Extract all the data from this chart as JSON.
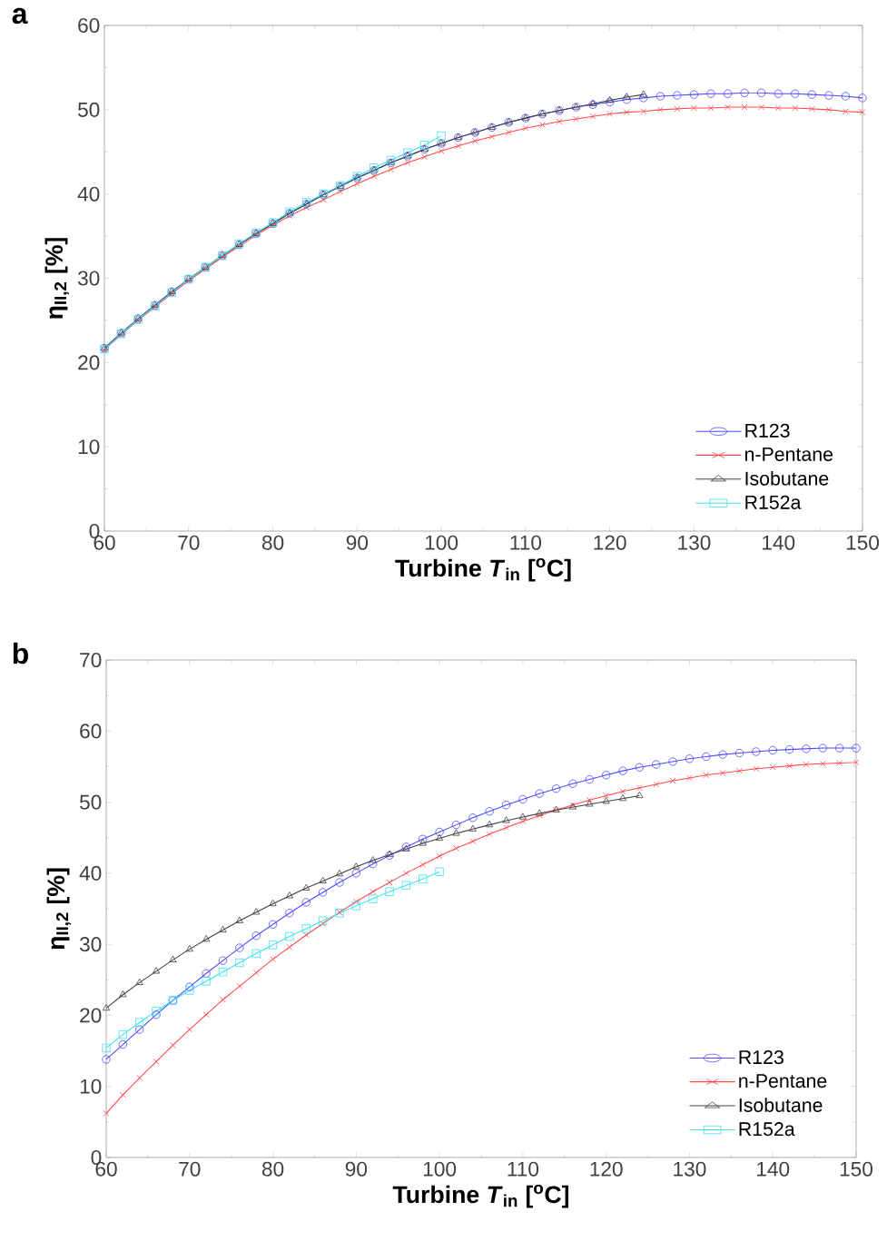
{
  "chart_data": [
    {
      "type": "line",
      "annotations": [
        "a"
      ],
      "xlabel": "Turbine *T*$_{in}$ [$^{o}$C]",
      "ylabel": "η$_{II,2}$ [%]",
      "xlim": [
        60,
        150
      ],
      "ylim": [
        0,
        60
      ],
      "xticks": [
        60,
        70,
        80,
        90,
        100,
        110,
        120,
        130,
        140,
        150
      ],
      "yticks": [
        0,
        10,
        20,
        30,
        40,
        50,
        60
      ],
      "grid": false,
      "legend": "bottom right",
      "line_style": "solid",
      "series": [
        {
          "name": "R123",
          "color": "#4a4aff",
          "marker": "circle",
          "x": [
            60,
            62,
            64,
            66,
            68,
            70,
            72,
            74,
            76,
            78,
            80,
            82,
            84,
            86,
            88,
            90,
            92,
            94,
            96,
            98,
            100,
            102,
            104,
            106,
            108,
            110,
            112,
            114,
            116,
            118,
            120,
            122,
            124,
            126,
            128,
            130,
            132,
            134,
            136,
            138,
            140,
            142,
            144,
            146,
            148,
            150
          ],
          "values": [
            21.7,
            23.5,
            25.2,
            26.8,
            28.4,
            29.9,
            31.3,
            32.7,
            34.0,
            35.3,
            36.5,
            37.7,
            38.8,
            39.9,
            40.9,
            41.9,
            42.8,
            43.7,
            44.5,
            45.3,
            46.0,
            46.7,
            47.3,
            47.9,
            48.5,
            49.0,
            49.5,
            49.9,
            50.3,
            50.6,
            50.9,
            51.2,
            51.4,
            51.6,
            51.7,
            51.8,
            51.9,
            51.9,
            52.0,
            52.0,
            51.9,
            51.9,
            51.8,
            51.7,
            51.6,
            51.4
          ]
        },
        {
          "name": "n-Pentane",
          "color": "#ff4a4a",
          "marker": "cross",
          "x": [
            60,
            62,
            64,
            66,
            68,
            70,
            72,
            74,
            76,
            78,
            80,
            82,
            84,
            86,
            88,
            90,
            92,
            94,
            96,
            98,
            100,
            102,
            104,
            106,
            108,
            110,
            112,
            114,
            116,
            118,
            120,
            122,
            124,
            126,
            128,
            130,
            132,
            134,
            136,
            138,
            140,
            142,
            144,
            146,
            148,
            150
          ],
          "values": [
            21.5,
            23.3,
            25.0,
            26.6,
            28.2,
            29.7,
            31.1,
            32.5,
            33.8,
            35.1,
            36.3,
            37.4,
            38.4,
            39.3,
            40.3,
            41.2,
            42.1,
            42.9,
            43.7,
            44.4,
            45.1,
            45.7,
            46.3,
            46.8,
            47.3,
            47.8,
            48.2,
            48.6,
            48.9,
            49.2,
            49.5,
            49.7,
            49.8,
            50.0,
            50.1,
            50.2,
            50.2,
            50.3,
            50.3,
            50.3,
            50.2,
            50.2,
            50.1,
            50.0,
            49.8,
            49.7
          ]
        },
        {
          "name": "Isobutane",
          "color": "#404040",
          "marker": "triangle",
          "x": [
            60,
            62,
            64,
            66,
            68,
            70,
            72,
            74,
            76,
            78,
            80,
            82,
            84,
            86,
            88,
            90,
            92,
            94,
            96,
            98,
            100,
            102,
            104,
            106,
            108,
            110,
            112,
            114,
            116,
            118,
            120,
            122,
            124
          ],
          "values": [
            21.7,
            23.5,
            25.2,
            26.8,
            28.4,
            29.9,
            31.3,
            32.7,
            34.0,
            35.3,
            36.5,
            37.7,
            38.8,
            39.9,
            40.9,
            41.9,
            42.8,
            43.7,
            44.5,
            45.3,
            46.0,
            46.7,
            47.3,
            47.9,
            48.5,
            49.0,
            49.5,
            49.9,
            50.3,
            50.7,
            51.1,
            51.5,
            51.8
          ]
        },
        {
          "name": "R152a",
          "color": "#3ee0f0",
          "marker": "square",
          "x": [
            60,
            62,
            64,
            66,
            68,
            70,
            72,
            74,
            76,
            78,
            80,
            82,
            84,
            86,
            88,
            90,
            92,
            94,
            96,
            98,
            100
          ],
          "values": [
            21.6,
            23.4,
            25.1,
            26.7,
            28.3,
            29.9,
            31.3,
            32.7,
            34.1,
            35.4,
            36.6,
            37.9,
            39.0,
            40.0,
            41.0,
            42.1,
            43.1,
            44.0,
            44.9,
            45.8,
            46.9
          ]
        }
      ]
    },
    {
      "type": "line",
      "annotations": [
        "b"
      ],
      "xlabel": "Turbine *T*$_{in}$ [$^{o}$C]",
      "ylabel": "η$_{II,2}$ [%]",
      "xlim": [
        60,
        150
      ],
      "ylim": [
        0,
        70
      ],
      "xticks": [
        60,
        70,
        80,
        90,
        100,
        110,
        120,
        130,
        140,
        150
      ],
      "yticks": [
        0,
        10,
        20,
        30,
        40,
        50,
        60,
        70
      ],
      "grid": false,
      "legend": "bottom right",
      "line_style": "solid",
      "series": [
        {
          "name": "R123",
          "color": "#4a4aff",
          "marker": "circle",
          "x": [
            60,
            62,
            64,
            66,
            68,
            70,
            72,
            74,
            76,
            78,
            80,
            82,
            84,
            86,
            88,
            90,
            92,
            94,
            96,
            98,
            100,
            102,
            104,
            106,
            108,
            110,
            112,
            114,
            116,
            118,
            120,
            122,
            124,
            126,
            128,
            130,
            132,
            134,
            136,
            138,
            140,
            142,
            144,
            146,
            148,
            150
          ],
          "values": [
            13.8,
            15.9,
            18.0,
            20.1,
            22.1,
            24.0,
            25.9,
            27.7,
            29.5,
            31.2,
            32.8,
            34.4,
            35.9,
            37.3,
            38.7,
            40.0,
            41.3,
            42.5,
            43.7,
            44.8,
            45.8,
            46.8,
            47.8,
            48.7,
            49.6,
            50.4,
            51.2,
            51.9,
            52.6,
            53.2,
            53.8,
            54.4,
            54.9,
            55.3,
            55.7,
            56.1,
            56.4,
            56.7,
            56.9,
            57.1,
            57.3,
            57.4,
            57.5,
            57.6,
            57.6,
            57.6
          ]
        },
        {
          "name": "n-Pentane",
          "color": "#ff4a4a",
          "marker": "cross",
          "x": [
            60,
            62,
            64,
            66,
            68,
            70,
            72,
            74,
            76,
            78,
            80,
            82,
            84,
            86,
            88,
            90,
            92,
            94,
            96,
            98,
            100,
            102,
            104,
            106,
            108,
            110,
            112,
            114,
            116,
            118,
            120,
            122,
            124,
            126,
            128,
            130,
            132,
            134,
            136,
            138,
            140,
            142,
            144,
            146,
            148,
            150
          ],
          "values": [
            6.2,
            8.8,
            11.2,
            13.5,
            15.8,
            18.0,
            20.1,
            22.2,
            24.1,
            26.0,
            27.9,
            29.6,
            31.3,
            32.9,
            34.5,
            36.0,
            37.4,
            38.7,
            40.0,
            41.2,
            42.4,
            43.5,
            44.5,
            45.5,
            46.4,
            47.3,
            48.1,
            48.9,
            49.6,
            50.3,
            50.9,
            51.5,
            52.0,
            52.5,
            53.0,
            53.4,
            53.8,
            54.1,
            54.4,
            54.7,
            54.9,
            55.1,
            55.3,
            55.4,
            55.5,
            55.6
          ]
        },
        {
          "name": "Isobutane",
          "color": "#404040",
          "marker": "triangle",
          "x": [
            60,
            62,
            64,
            66,
            68,
            70,
            72,
            74,
            76,
            78,
            80,
            82,
            84,
            86,
            88,
            90,
            92,
            94,
            96,
            98,
            100,
            102,
            104,
            106,
            108,
            110,
            112,
            114,
            116,
            118,
            120,
            122,
            124
          ],
          "values": [
            21.0,
            22.9,
            24.6,
            26.2,
            27.8,
            29.3,
            30.7,
            32.0,
            33.3,
            34.5,
            35.7,
            36.8,
            37.9,
            38.9,
            39.9,
            40.9,
            41.8,
            42.6,
            43.4,
            44.2,
            44.9,
            45.6,
            46.2,
            46.8,
            47.4,
            47.9,
            48.4,
            48.9,
            49.3,
            49.7,
            50.1,
            50.5,
            50.9
          ]
        },
        {
          "name": "R152a",
          "color": "#3ee0f0",
          "marker": "square",
          "x": [
            60,
            62,
            64,
            66,
            68,
            70,
            72,
            74,
            76,
            78,
            80,
            82,
            84,
            86,
            88,
            90,
            92,
            94,
            96,
            98,
            100
          ],
          "values": [
            15.4,
            17.3,
            19.0,
            20.6,
            22.1,
            23.5,
            24.8,
            26.1,
            27.4,
            28.7,
            29.9,
            31.1,
            32.2,
            33.3,
            34.4,
            35.4,
            36.4,
            37.4,
            38.3,
            39.2,
            40.2
          ]
        }
      ]
    }
  ]
}
